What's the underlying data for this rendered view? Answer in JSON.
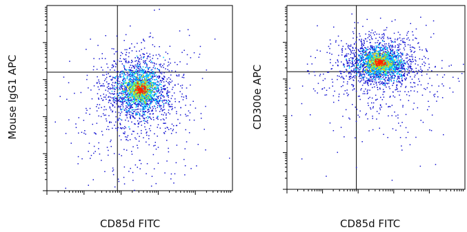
{
  "chart_data": [
    {
      "type": "scatter",
      "subtype": "flow-cytometry-density-dot-plot",
      "xlabel": "CD85d FITC",
      "ylabel": "Mouse IgG1 APC",
      "axis_scale": "log",
      "tick_labels": false,
      "grid": false,
      "gates": {
        "x": 0.38,
        "y": 0.36
      },
      "population": {
        "center_x": 0.5,
        "center_y": 0.45,
        "spread_x": 0.07,
        "spread_y": 0.07,
        "tail_down": true
      },
      "colors": {
        "low": "#1010d0",
        "mid": "#00c8ff",
        "high": "#ffd200",
        "peak": "#ff2000"
      }
    },
    {
      "type": "scatter",
      "subtype": "flow-cytometry-density-dot-plot",
      "xlabel": "CD85d FITC",
      "ylabel": "CD300e APC",
      "axis_scale": "log",
      "tick_labels": false,
      "grid": false,
      "gates": {
        "x": 0.39,
        "y": 0.36
      },
      "population": {
        "center_x": 0.52,
        "center_y": 0.31,
        "spread_x": 0.08,
        "spread_y": 0.05,
        "tail_down": true
      },
      "colors": {
        "low": "#1010d0",
        "mid": "#00c8ff",
        "high": "#ffd200",
        "peak": "#ff2000"
      }
    }
  ]
}
